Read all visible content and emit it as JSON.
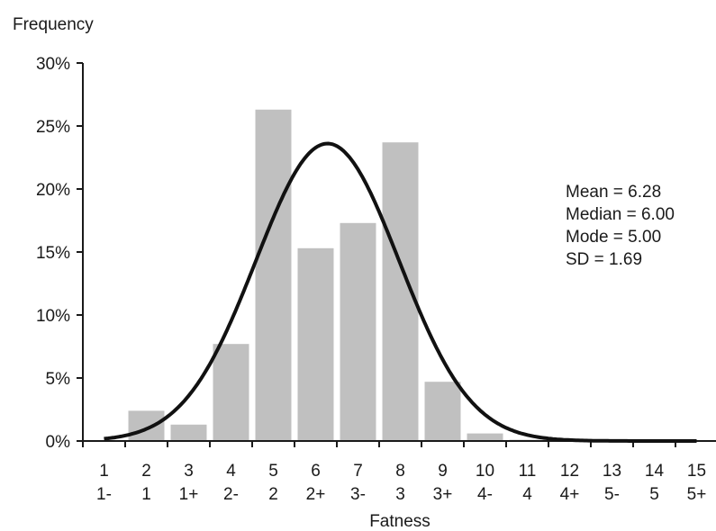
{
  "chart_data": {
    "type": "bar",
    "ylabel": "Frequency",
    "xlabel": "Fatness",
    "y_ticks": [
      "0%",
      "5%",
      "10%",
      "15%",
      "20%",
      "25%",
      "30%"
    ],
    "ylim": [
      0,
      30
    ],
    "categories": [
      {
        "score": "1",
        "grade": "1-"
      },
      {
        "score": "2",
        "grade": "1"
      },
      {
        "score": "3",
        "grade": "1+"
      },
      {
        "score": "4",
        "grade": "2-"
      },
      {
        "score": "5",
        "grade": "2"
      },
      {
        "score": "6",
        "grade": "2+"
      },
      {
        "score": "7",
        "grade": "3-"
      },
      {
        "score": "8",
        "grade": "3"
      },
      {
        "score": "9",
        "grade": "3+"
      },
      {
        "score": "10",
        "grade": "4-"
      },
      {
        "score": "11",
        "grade": "4"
      },
      {
        "score": "12",
        "grade": "4+"
      },
      {
        "score": "13",
        "grade": "5-"
      },
      {
        "score": "14",
        "grade": "5"
      },
      {
        "score": "15",
        "grade": "5+"
      }
    ],
    "values": [
      0,
      2.4,
      1.3,
      7.7,
      26.3,
      15.3,
      17.3,
      23.7,
      4.7,
      0.6,
      0.1,
      0,
      0,
      0,
      0
    ],
    "bar_color": "#c0c0c0",
    "curve": {
      "type": "normal",
      "mean": 6.28,
      "sd": 1.69,
      "color": "#111111"
    },
    "stats": [
      "Mean = 6.28",
      "Median = 6.00",
      "Mode = 5.00",
      "SD = 1.69"
    ]
  }
}
